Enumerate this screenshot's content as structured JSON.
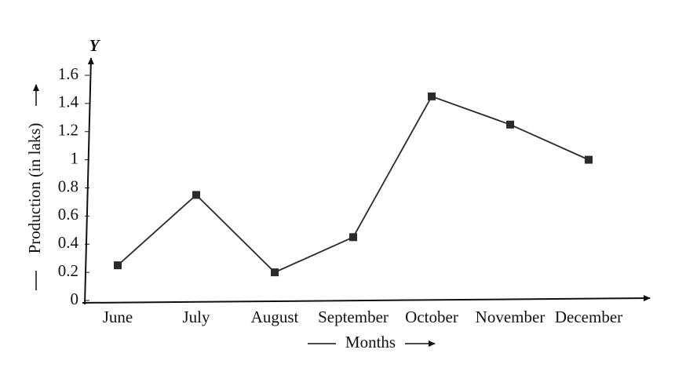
{
  "chart_data": {
    "type": "line",
    "y_axis_symbol": "Y",
    "y_label": "Production (in laks)",
    "x_label": "Months",
    "categories": [
      "June",
      "July",
      "August",
      "September",
      "October",
      "November",
      "December"
    ],
    "series": [
      {
        "name": "Production",
        "color": "#2a2a2a",
        "values": [
          0.25,
          0.75,
          0.2,
          0.45,
          1.45,
          1.25,
          1
        ]
      }
    ],
    "ylim": [
      0,
      1.6
    ],
    "yticks": [
      0,
      0.2,
      0.4,
      0.6,
      0.8,
      1,
      1.2,
      1.4,
      1.6
    ],
    "grid": false
  }
}
